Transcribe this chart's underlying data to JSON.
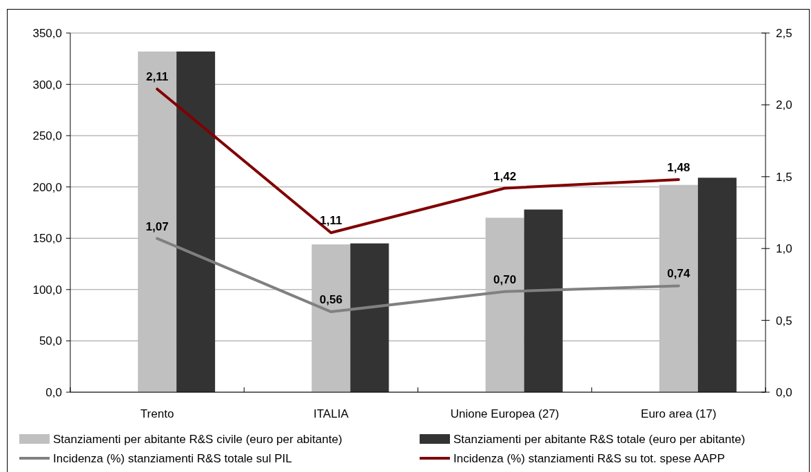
{
  "chart_data": {
    "type": "bar",
    "categories": [
      "Trento",
      "ITALIA",
      "Unione Europea (27)",
      "Euro area (17)"
    ],
    "series": [
      {
        "name": "Stanziamenti per abitante R&S civile (euro per abitante)",
        "color": "#c0c0c0",
        "values": [
          332,
          144,
          170,
          202
        ]
      },
      {
        "name": "Stanziamenti per abitante R&S totale (euro per abitante)",
        "color": "#333333",
        "values": [
          332,
          145,
          178,
          209
        ]
      },
      {
        "name": "Incidenza (%) stanziamenti R&S totale sul PIL",
        "type": "line",
        "axis": "y2",
        "color": "#808080",
        "values": [
          1.07,
          0.56,
          0.7,
          0.74
        ],
        "value_labels": [
          "1,07",
          "0,56",
          "0,70",
          "0,74"
        ]
      },
      {
        "name": "Incidenza (%) stanziamenti R&S su tot. spese AAPP",
        "type": "line",
        "axis": "y2",
        "color": "#800000",
        "values": [
          2.11,
          1.11,
          1.42,
          1.48
        ],
        "value_labels": [
          "2,11",
          "1,11",
          "1,42",
          "1,48"
        ]
      }
    ],
    "ylim": [
      0,
      350
    ],
    "yticks": [
      {
        "value": 0,
        "label": "0,0"
      },
      {
        "value": 50,
        "label": "50,0"
      },
      {
        "value": 100,
        "label": "100,0"
      },
      {
        "value": 150,
        "label": "150,0"
      },
      {
        "value": 200,
        "label": "200,0"
      },
      {
        "value": 250,
        "label": "250,0"
      },
      {
        "value": 300,
        "label": "300,0"
      },
      {
        "value": 350,
        "label": "350,0"
      }
    ],
    "y2lim": [
      0,
      2.5
    ],
    "y2ticks": [
      {
        "value": 0,
        "label": "0,0"
      },
      {
        "value": 0.5,
        "label": "0,5"
      },
      {
        "value": 1,
        "label": "1,0"
      },
      {
        "value": 1.5,
        "label": "1,5"
      },
      {
        "value": 2,
        "label": "2,0"
      },
      {
        "value": 2.5,
        "label": "2,5"
      }
    ],
    "grid": "y",
    "legend": "bottom"
  }
}
